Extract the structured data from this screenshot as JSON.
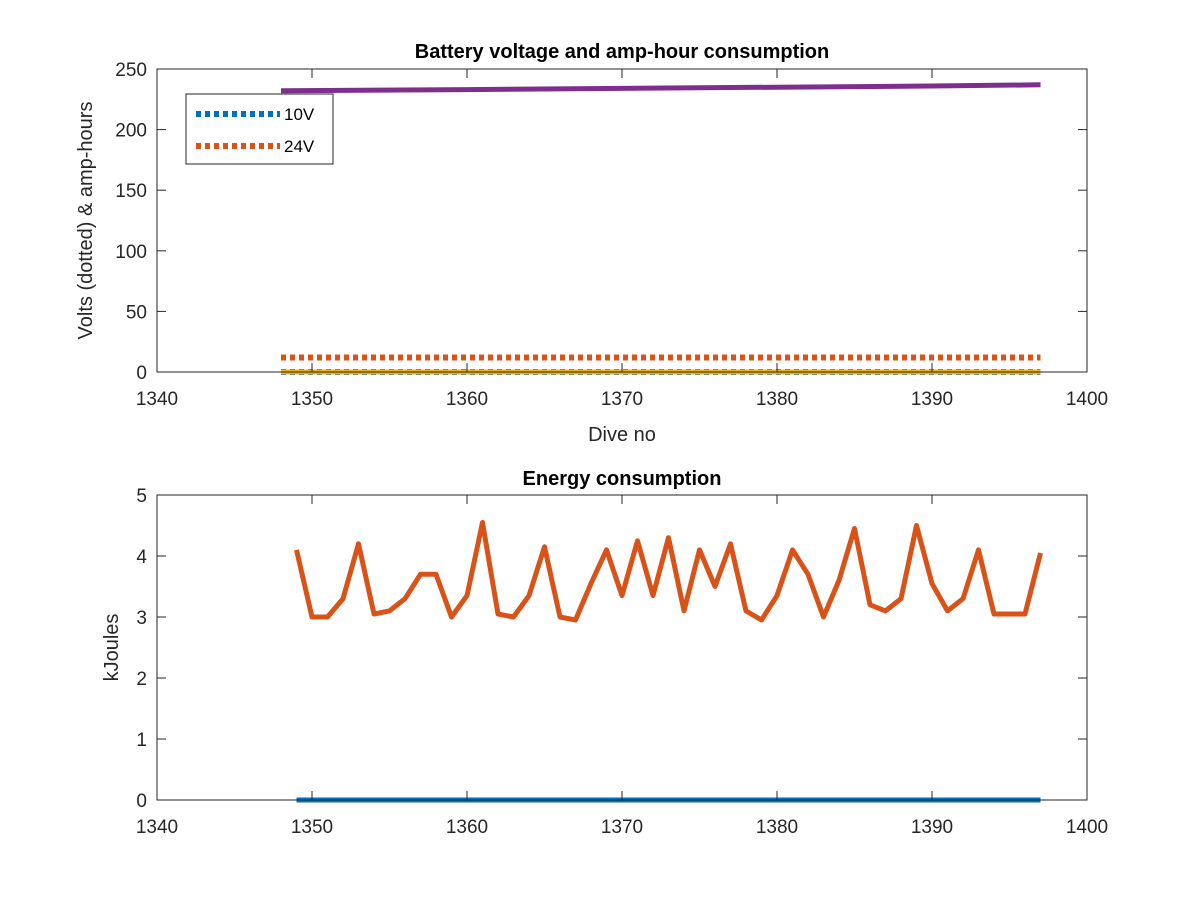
{
  "chart_data": [
    {
      "type": "line",
      "title": "Battery voltage and amp-hour consumption",
      "xlabel": "Dive no",
      "ylabel": "Volts (dotted) & amp-hours",
      "xlim": [
        1340,
        1400
      ],
      "ylim": [
        0,
        250
      ],
      "xticks": [
        1340,
        1350,
        1360,
        1370,
        1380,
        1390,
        1400
      ],
      "yticks": [
        0,
        50,
        100,
        150,
        200,
        250
      ],
      "grid": false,
      "legend": {
        "placement": "top-left",
        "entries": [
          "10V",
          "24V"
        ]
      },
      "series": [
        {
          "name": "10V",
          "style": "dotted",
          "color": "#0072BD",
          "x": [
            1348,
            1397
          ],
          "y": [
            0,
            0
          ]
        },
        {
          "name": "24V",
          "style": "dotted",
          "color": "#D95319",
          "x": [
            1348,
            1397
          ],
          "y": [
            12,
            12
          ]
        },
        {
          "style": "solid",
          "color": "#EDB120",
          "x": [
            1348,
            1397
          ],
          "y": [
            0,
            0
          ]
        },
        {
          "style": "solid",
          "color": "#7E2F8E",
          "x": [
            1348,
            1360,
            1370,
            1380,
            1390,
            1397
          ],
          "y": [
            232,
            233,
            234,
            235,
            236,
            237
          ]
        }
      ]
    },
    {
      "type": "line",
      "title": "Energy consumption",
      "xlabel": "",
      "ylabel": "kJoules",
      "xlim": [
        1340,
        1400
      ],
      "ylim": [
        0,
        5
      ],
      "xticks": [
        1340,
        1350,
        1360,
        1370,
        1380,
        1390,
        1400
      ],
      "yticks": [
        0,
        1,
        2,
        3,
        4,
        5
      ],
      "grid": false,
      "series": [
        {
          "style": "solid",
          "color": "#0072BD",
          "x": [
            1349,
            1397
          ],
          "y": [
            0,
            0
          ]
        },
        {
          "style": "solid",
          "color": "#D95319",
          "x": [
            1349,
            1350,
            1351,
            1352,
            1353,
            1354,
            1355,
            1356,
            1357,
            1358,
            1359,
            1360,
            1361,
            1362,
            1363,
            1364,
            1365,
            1366,
            1367,
            1368,
            1369,
            1370,
            1371,
            1372,
            1373,
            1374,
            1375,
            1376,
            1377,
            1378,
            1379,
            1380,
            1381,
            1382,
            1383,
            1384,
            1385,
            1386,
            1387,
            1388,
            1389,
            1390,
            1391,
            1392,
            1393,
            1394,
            1395,
            1396,
            1397
          ],
          "y": [
            4.1,
            3.0,
            3.0,
            3.3,
            4.2,
            3.05,
            3.1,
            3.3,
            3.7,
            3.7,
            3.0,
            3.35,
            4.55,
            3.05,
            3.0,
            3.35,
            4.15,
            3.0,
            2.95,
            3.55,
            4.1,
            3.35,
            4.25,
            3.35,
            4.3,
            3.1,
            4.1,
            3.5,
            4.2,
            3.1,
            2.95,
            3.35,
            4.1,
            3.7,
            3.0,
            3.6,
            4.45,
            3.2,
            3.1,
            3.3,
            4.5,
            3.55,
            3.1,
            3.3,
            4.1,
            3.05,
            3.05,
            3.05,
            4.05
          ]
        }
      ]
    }
  ]
}
